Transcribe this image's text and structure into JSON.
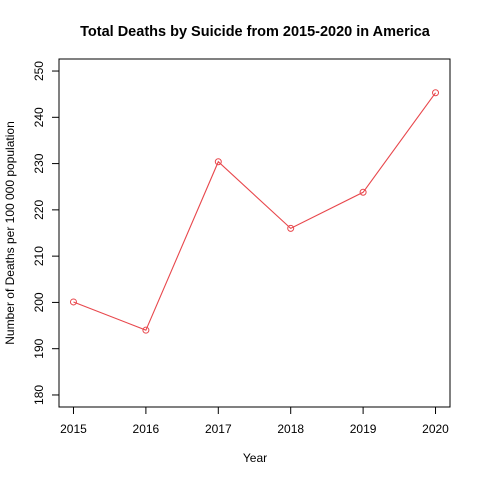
{
  "chart_data": {
    "type": "line",
    "title": "Total Deaths by Suicide from 2015-2020 in America",
    "xlabel": "Year",
    "ylabel": "Number of Deaths per 100 000 population",
    "x": [
      2015,
      2016,
      2017,
      2018,
      2019,
      2020
    ],
    "series": [
      {
        "values": [
          200.1,
          194.0,
          230.4,
          216.0,
          223.8,
          245.3
        ]
      }
    ],
    "xlim": [
      2014.8,
      2020.2
    ],
    "ylim": [
      177.4,
      252.6
    ],
    "x_ticks": [
      "2015",
      "2016",
      "2017",
      "2018",
      "2019",
      "2020"
    ],
    "y_ticks": [
      "180",
      "190",
      "200",
      "210",
      "220",
      "230",
      "240",
      "250"
    ],
    "line_color": "#e8474c",
    "marker": "open-circle",
    "grid": false,
    "legend": "none"
  }
}
